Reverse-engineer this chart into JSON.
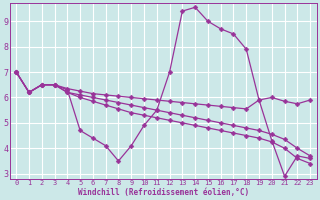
{
  "background_color": "#cce8e8",
  "grid_color": "#ffffff",
  "line_color": "#993399",
  "marker": "D",
  "marker_size": 2.5,
  "xlabel": "Windchill (Refroidissement éolien,°C)",
  "xlim": [
    -0.5,
    23.5
  ],
  "ylim": [
    2.8,
    9.7
  ],
  "yticks": [
    3,
    4,
    5,
    6,
    7,
    8,
    9
  ],
  "xticks": [
    0,
    1,
    2,
    3,
    4,
    5,
    6,
    7,
    8,
    9,
    10,
    11,
    12,
    13,
    14,
    15,
    16,
    17,
    18,
    19,
    20,
    21,
    22,
    23
  ],
  "curves": [
    [
      7.0,
      6.2,
      6.5,
      6.5,
      6.3,
      4.7,
      4.4,
      4.1,
      3.5,
      4.1,
      4.9,
      5.5,
      7.0,
      9.4,
      9.55,
      9.0,
      8.7,
      8.5,
      7.9,
      5.9,
      4.3,
      2.9,
      3.7,
      3.6
    ],
    [
      7.0,
      6.2,
      6.5,
      6.5,
      6.35,
      6.25,
      6.15,
      6.1,
      6.05,
      6.0,
      5.95,
      5.9,
      5.85,
      5.8,
      5.75,
      5.7,
      5.65,
      5.6,
      5.55,
      5.9,
      6.0,
      5.85,
      5.75,
      5.9
    ],
    [
      7.0,
      6.2,
      6.5,
      6.5,
      6.2,
      6.1,
      6.0,
      5.9,
      5.8,
      5.7,
      5.6,
      5.5,
      5.4,
      5.3,
      5.2,
      5.1,
      5.0,
      4.9,
      4.8,
      4.7,
      4.55,
      4.35,
      4.0,
      3.7
    ],
    [
      7.0,
      6.2,
      6.5,
      6.5,
      6.2,
      6.0,
      5.85,
      5.7,
      5.55,
      5.4,
      5.3,
      5.2,
      5.1,
      5.0,
      4.9,
      4.8,
      4.7,
      4.6,
      4.5,
      4.4,
      4.25,
      4.0,
      3.6,
      3.4
    ]
  ]
}
